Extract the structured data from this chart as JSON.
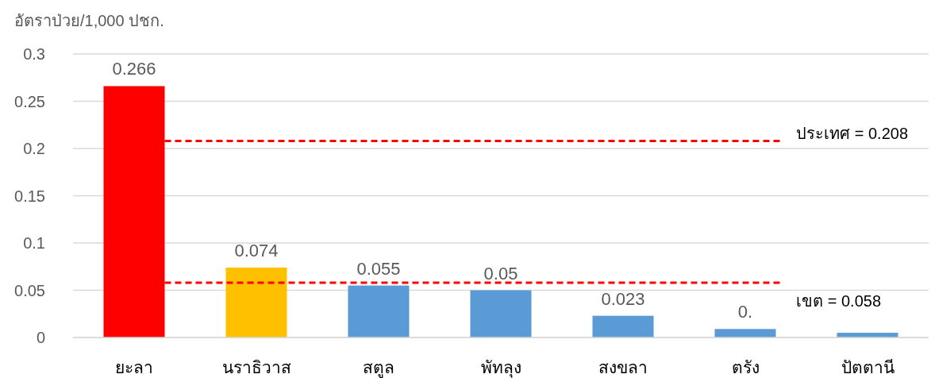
{
  "chart_data": {
    "type": "bar",
    "ylabel": "อัตราป่วย/1,000 ปชก.",
    "categories": [
      "ยะลา",
      "นราธิวาส",
      "สตูล",
      "พัทลุง",
      "สงขลา",
      "ตรัง",
      "ปัตตานี"
    ],
    "values": [
      0.266,
      0.074,
      0.055,
      0.05,
      0.023,
      0.009,
      0.005
    ],
    "colors": [
      "#ff0000",
      "#ffc000",
      "#5b9bd5",
      "#5b9bd5",
      "#5b9bd5",
      "#5b9bd5",
      "#5b9bd5"
    ],
    "value_labels": [
      "0.266",
      "0.074",
      "0.055",
      "0.05",
      "0.023",
      "0.",
      null
    ],
    "ylim": [
      0,
      0.3
    ],
    "yticks": [
      0,
      0.05,
      0.1,
      0.15,
      0.2,
      0.25,
      0.3
    ],
    "grid": "y",
    "ref_lines": [
      {
        "axis": "y",
        "value": 0.208,
        "label": "ประเทศ = 0.208",
        "color": "#ff0000",
        "line_style": "dashed"
      },
      {
        "axis": "y",
        "value": 0.058,
        "label": "เขต = 0.058",
        "color": "#ff0000",
        "line_style": "dashed"
      }
    ]
  }
}
